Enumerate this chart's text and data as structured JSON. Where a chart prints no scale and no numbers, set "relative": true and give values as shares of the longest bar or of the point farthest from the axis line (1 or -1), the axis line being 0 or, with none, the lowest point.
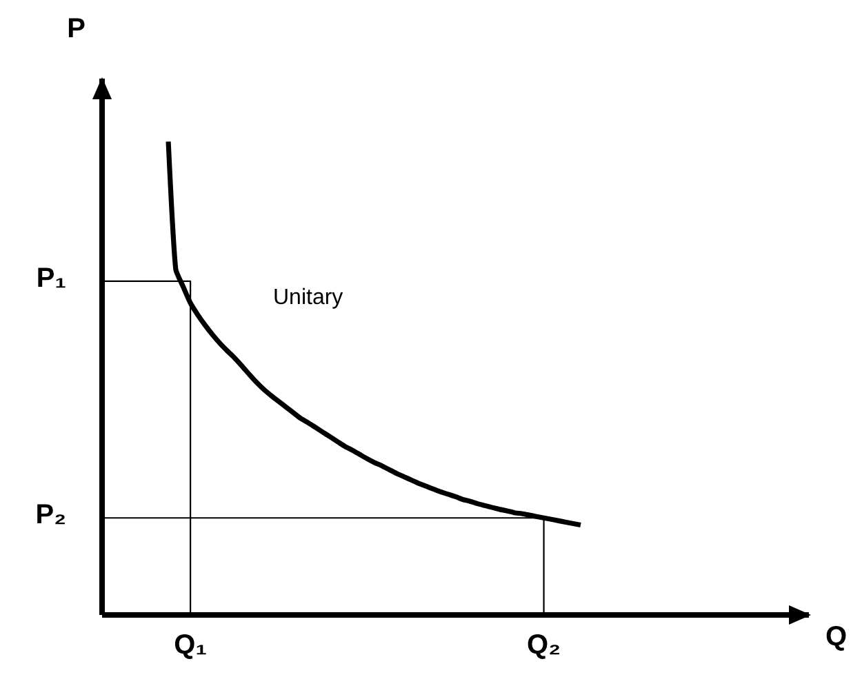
{
  "chart_data": {
    "type": "line",
    "relative": true,
    "xlabel": "Q",
    "ylabel": "P",
    "marker": "none",
    "categories": [
      null,
      null,
      null,
      null,
      null,
      null,
      null,
      null,
      null,
      null,
      null,
      null,
      "Q₁",
      null,
      null,
      null,
      null,
      null,
      null,
      null,
      null,
      null,
      null,
      null,
      null,
      null,
      null,
      null,
      null,
      null,
      null,
      null,
      null,
      null,
      null,
      null,
      null,
      null,
      null,
      null,
      null,
      null,
      null,
      null,
      null,
      null,
      null,
      null,
      null,
      null,
      null,
      null,
      null,
      null,
      null,
      null,
      null,
      null,
      null,
      null,
      "Q₂",
      null,
      null,
      null,
      null,
      null,
      null,
      null,
      null,
      null,
      null,
      null,
      null,
      null,
      null,
      null,
      null,
      null,
      null,
      null,
      null,
      null,
      null,
      null,
      null,
      null,
      null,
      null,
      null,
      null,
      null,
      null,
      null,
      null,
      null,
      null,
      null
    ],
    "series": [
      {
        "color": "#000000",
        "values": [
          null,
          null,
          null,
          null,
          null,
          null,
          null,
          null,
          null,
          1.0,
          0.731,
          0.694,
          0.659,
          0.634,
          0.612,
          0.592,
          0.574,
          0.558,
          0.543,
          0.526,
          0.508,
          0.491,
          0.476,
          0.463,
          0.451,
          0.439,
          0.427,
          0.415,
          0.406,
          0.396,
          0.386,
          0.376,
          0.366,
          0.356,
          0.348,
          0.339,
          0.33,
          0.322,
          0.315,
          0.307,
          0.299,
          0.292,
          0.285,
          0.278,
          0.272,
          0.266,
          0.26,
          0.255,
          0.25,
          0.244,
          0.24,
          0.235,
          0.231,
          0.227,
          0.223,
          0.22,
          0.216,
          0.214,
          0.211,
          0.208,
          0.205,
          0.202,
          0.199,
          0.196,
          0.193,
          0.19,
          null,
          null,
          null,
          null,
          null,
          null,
          null,
          null,
          null,
          null,
          null,
          null,
          null,
          null,
          null,
          null,
          null,
          null,
          null,
          null,
          null,
          null,
          null,
          null,
          null,
          null,
          null,
          null,
          null,
          null,
          null
        ]
      },
      {
        "type": "step",
        "name": "P₁",
        "color": "#000000",
        "values": [
          0.705,
          0.705,
          0.705,
          0.705,
          0.705,
          0.705,
          0.705,
          0.705,
          0.705,
          0.705,
          0.705,
          0.705,
          0.705,
          0,
          null,
          null,
          null,
          null,
          null,
          null,
          null,
          null,
          null,
          null,
          null,
          null,
          null,
          null,
          null,
          null,
          null,
          null,
          null,
          null,
          null,
          null,
          null,
          null,
          null,
          null,
          null,
          null,
          null,
          null,
          null,
          null,
          null,
          null,
          null,
          null,
          null,
          null,
          null,
          null,
          null,
          null,
          null,
          null,
          null,
          null,
          null,
          null,
          null,
          null,
          null,
          null,
          null,
          null,
          null,
          null,
          null,
          null,
          null,
          null,
          null,
          null,
          null,
          null,
          null,
          null,
          null,
          null,
          null,
          null,
          null,
          null,
          null,
          null,
          null,
          null,
          null,
          null,
          null,
          null,
          null,
          null,
          null
        ]
      },
      {
        "type": "step",
        "name": "P₂",
        "color": "#000000",
        "values": [
          0.205,
          0.205,
          0.205,
          0.205,
          0.205,
          0.205,
          0.205,
          0.205,
          0.205,
          0.205,
          0.205,
          0.205,
          0.205,
          0.205,
          0.205,
          0.205,
          0.205,
          0.205,
          0.205,
          0.205,
          0.205,
          0.205,
          0.205,
          0.205,
          0.205,
          0.205,
          0.205,
          0.205,
          0.205,
          0.205,
          0.205,
          0.205,
          0.205,
          0.205,
          0.205,
          0.205,
          0.205,
          0.205,
          0.205,
          0.205,
          0.205,
          0.205,
          0.205,
          0.205,
          0.205,
          0.205,
          0.205,
          0.205,
          0.205,
          0.205,
          0.205,
          0.205,
          0.205,
          0.205,
          0.205,
          0.205,
          0.205,
          0.205,
          0.205,
          0.205,
          0.205,
          0,
          null,
          null,
          null,
          null,
          null,
          null,
          null,
          null,
          null,
          null,
          null,
          null,
          null,
          null,
          null,
          null,
          null,
          null,
          null,
          null,
          null,
          null,
          null,
          null,
          null,
          null,
          null,
          null,
          null,
          null,
          null,
          null,
          null,
          null,
          null
        ]
      }
    ],
    "annotations": [
      "Unitary"
    ]
  }
}
